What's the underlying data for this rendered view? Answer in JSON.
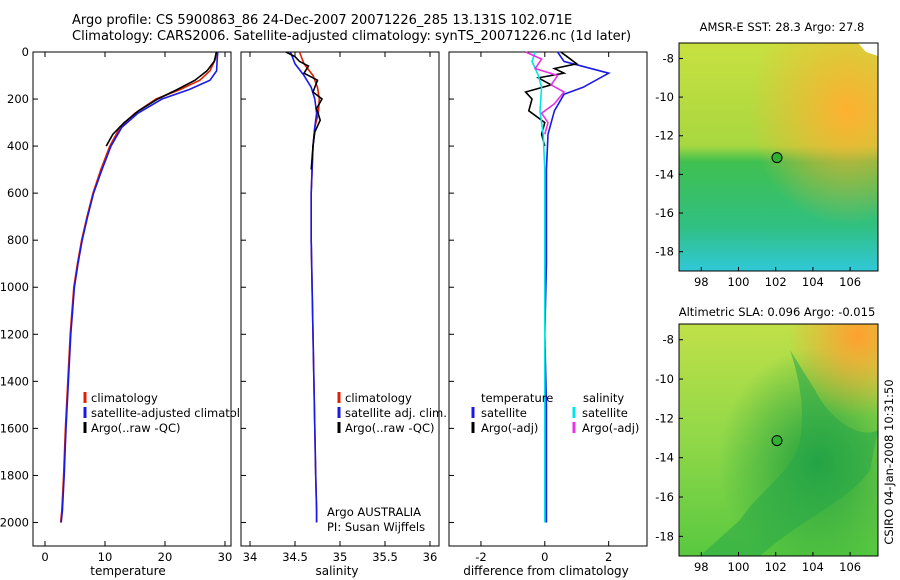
{
  "title": {
    "line1": "Argo profile: CS 5900863_86 24-Dec-2007 20071226_285 13.131S 102.071E",
    "line2": "Climatology: CARS2006. Satellite-adjusted climatology: synTS_20071226.nc (1d later)"
  },
  "side_label": "CSIRO 04-Jan-2008 10:31:50",
  "colors": {
    "climatology": "#e02000",
    "satellite": "#1a1ae6",
    "argo": "#000000",
    "sat_salinity": "#00e6e6",
    "argo_salinity": "#e633e6"
  },
  "chart_data": [
    {
      "type": "line",
      "id": "temperature",
      "xlabel": "temperature",
      "ylabel": "",
      "xlim": [
        -2,
        31
      ],
      "ylim": [
        2100,
        0
      ],
      "xticks": [
        0,
        10,
        20,
        30
      ],
      "xtick_labels": [
        "0",
        "10",
        "20",
        "30"
      ],
      "yticks": [
        0,
        200,
        400,
        600,
        800,
        1000,
        1200,
        1400,
        1600,
        1800,
        2000
      ],
      "ytick_labels": [
        "0",
        "200",
        "400",
        "600",
        "800",
        "1000",
        "1200",
        "1400",
        "1600",
        "1800",
        "2000"
      ],
      "legend": [
        "climatology",
        "satellite-adjusted climatology",
        "Argo(..raw -QC)"
      ],
      "series": [
        {
          "name": "climatology",
          "color": "#e02000",
          "x": [
            28.5,
            28.4,
            27.5,
            25.8,
            22.5,
            18.5,
            15.0,
            12.5,
            10.8,
            9.3,
            8.0,
            7.0,
            6.1,
            5.4,
            4.8,
            4.2,
            3.8,
            3.4,
            3.1,
            2.8,
            2.6
          ],
          "y": [
            0,
            30,
            80,
            120,
            160,
            200,
            260,
            320,
            400,
            500,
            600,
            700,
            800,
            900,
            1000,
            1200,
            1400,
            1600,
            1800,
            1950,
            2000
          ]
        },
        {
          "name": "satellite-adjusted climatology",
          "color": "#1a1ae6",
          "x": [
            28.8,
            28.7,
            28.6,
            27.5,
            24.0,
            19.5,
            15.5,
            12.8,
            11.0,
            9.5,
            8.1,
            7.1,
            6.2,
            5.5,
            4.9,
            4.3,
            3.9,
            3.5,
            3.2,
            2.9,
            2.7
          ],
          "y": [
            0,
            30,
            80,
            120,
            160,
            200,
            260,
            320,
            400,
            500,
            600,
            700,
            800,
            900,
            1000,
            1200,
            1400,
            1600,
            1800,
            1950,
            2000
          ]
        },
        {
          "name": "Argo(..raw -QC)",
          "color": "#000000",
          "x": [
            28.6,
            28.2,
            27.0,
            25.0,
            22.0,
            18.8,
            15.6,
            13.2,
            11.3,
            10.2
          ],
          "y": [
            0,
            40,
            80,
            120,
            160,
            200,
            250,
            300,
            350,
            400
          ]
        }
      ]
    },
    {
      "type": "line",
      "id": "salinity",
      "xlabel": "salinity",
      "xlim": [
        33.9,
        36.1
      ],
      "ylim": [
        2100,
        0
      ],
      "xticks": [
        34,
        34.5,
        35,
        35.5,
        36
      ],
      "xtick_labels": [
        "34",
        "34.5",
        "35",
        "35.5",
        "36"
      ],
      "legend": [
        "climatology",
        "satellite adj. clim.",
        "Argo(..raw -QC)"
      ],
      "annotation": [
        "Argo AUSTRALIA",
        "PI: Susan Wijffels"
      ],
      "series": [
        {
          "name": "climatology",
          "color": "#e02000",
          "x": [
            34.55,
            34.6,
            34.7,
            34.75,
            34.77,
            34.76,
            34.72,
            34.7,
            34.69,
            34.68,
            34.68,
            34.69,
            34.7,
            34.71,
            34.72,
            34.73,
            34.74,
            34.74
          ],
          "y": [
            0,
            50,
            100,
            150,
            200,
            260,
            320,
            400,
            500,
            600,
            800,
            1000,
            1200,
            1400,
            1600,
            1800,
            1950,
            2000
          ]
        },
        {
          "name": "satellite adj. clim.",
          "color": "#1a1ae6",
          "x": [
            34.45,
            34.5,
            34.6,
            34.68,
            34.72,
            34.74,
            34.72,
            34.7,
            34.69,
            34.68,
            34.68,
            34.69,
            34.7,
            34.71,
            34.72,
            34.73,
            34.74,
            34.74
          ],
          "y": [
            0,
            50,
            100,
            150,
            200,
            260,
            320,
            400,
            500,
            600,
            800,
            1000,
            1200,
            1400,
            1600,
            1800,
            1950,
            2000
          ]
        },
        {
          "name": "Argo(..raw -QC)",
          "color": "#000000",
          "x": [
            34.4,
            34.5,
            34.55,
            34.65,
            34.6,
            34.75,
            34.7,
            34.8,
            34.74,
            34.78,
            34.72,
            34.7,
            34.69,
            34.68
          ],
          "y": [
            0,
            20,
            40,
            60,
            90,
            120,
            170,
            200,
            240,
            290,
            340,
            400,
            450,
            500
          ]
        }
      ]
    },
    {
      "type": "line",
      "id": "difference",
      "xlabel": "difference from climatology",
      "xlim": [
        -3,
        3.2
      ],
      "ylim": [
        2100,
        0
      ],
      "xticks": [
        -2,
        0,
        2
      ],
      "xtick_labels": [
        "-2",
        "0",
        "2"
      ],
      "legend_titles": [
        "temperature",
        "salinity"
      ],
      "legend_left": [
        "satellite",
        "Argo(-adj)"
      ],
      "legend_right": [
        "satellite",
        "Argo(-adj)"
      ],
      "series": [
        {
          "name": "temperature satellite",
          "color": "#1a1ae6",
          "x": [
            0.4,
            0.6,
            2.0,
            1.2,
            0.6,
            0.3,
            0.1,
            0.05,
            0.05,
            0.05,
            0.0,
            0.05,
            0.05,
            0.05,
            0.05
          ],
          "y": [
            0,
            40,
            90,
            150,
            180,
            250,
            350,
            500,
            700,
            900,
            1200,
            1500,
            1700,
            1900,
            2000
          ]
        },
        {
          "name": "temperature Argo(-adj)",
          "color": "#000000",
          "x": [
            0.5,
            0.7,
            1.0,
            0.3,
            0.6,
            -0.2,
            0.2,
            -0.6,
            -0.4,
            -0.5,
            0.0,
            -0.1,
            0.0
          ],
          "y": [
            0,
            20,
            50,
            70,
            90,
            110,
            140,
            170,
            200,
            250,
            300,
            350,
            400
          ]
        },
        {
          "name": "salinity satellite",
          "color": "#00e6e6",
          "x": [
            -0.3,
            -0.4,
            -0.2,
            -0.1,
            -0.15,
            -0.05,
            0.0,
            0.0,
            0.0,
            0.0,
            0.0,
            0.0,
            0.0
          ],
          "y": [
            0,
            40,
            100,
            150,
            250,
            350,
            500,
            800,
            1100,
            1400,
            1700,
            1900,
            2000
          ]
        },
        {
          "name": "salinity Argo(-adj)",
          "color": "#e633e6",
          "x": [
            -0.6,
            -0.1,
            -0.3,
            0.4,
            0.2,
            0.6,
            0.3,
            -0.1,
            0.1,
            0.0
          ],
          "y": [
            0,
            30,
            70,
            100,
            140,
            170,
            220,
            260,
            300,
            350
          ]
        }
      ]
    },
    {
      "type": "heatmap",
      "id": "sst_map",
      "title": "AMSR-E SST: 28.3 Argo: 27.8",
      "xlim": [
        96.8,
        107.5
      ],
      "ylim": [
        -19.0,
        -7.2
      ],
      "xticks": [
        98,
        100,
        102,
        104,
        106
      ],
      "xtick_labels": [
        "98",
        "100",
        "102",
        "104",
        "106"
      ],
      "yticks": [
        -8,
        -10,
        -12,
        -14,
        -16,
        -18
      ],
      "ytick_labels": [
        "-8",
        "-10",
        "-12",
        "-14",
        "-16",
        "-18"
      ],
      "float_position": [
        102.07,
        -13.13
      ]
    },
    {
      "type": "heatmap",
      "id": "sla_map",
      "title": "Altimetric SLA: 0.096 Argo: -0.015",
      "xlim": [
        96.8,
        107.5
      ],
      "ylim": [
        -19.0,
        -7.2
      ],
      "xticks": [
        98,
        100,
        102,
        104,
        106
      ],
      "xtick_labels": [
        "98",
        "100",
        "102",
        "104",
        "106"
      ],
      "yticks": [
        -8,
        -10,
        -12,
        -14,
        -16,
        -18
      ],
      "ytick_labels": [
        "-8",
        "-10",
        "-12",
        "-14",
        "-16",
        "-18"
      ],
      "float_position": [
        102.07,
        -13.13
      ]
    }
  ]
}
